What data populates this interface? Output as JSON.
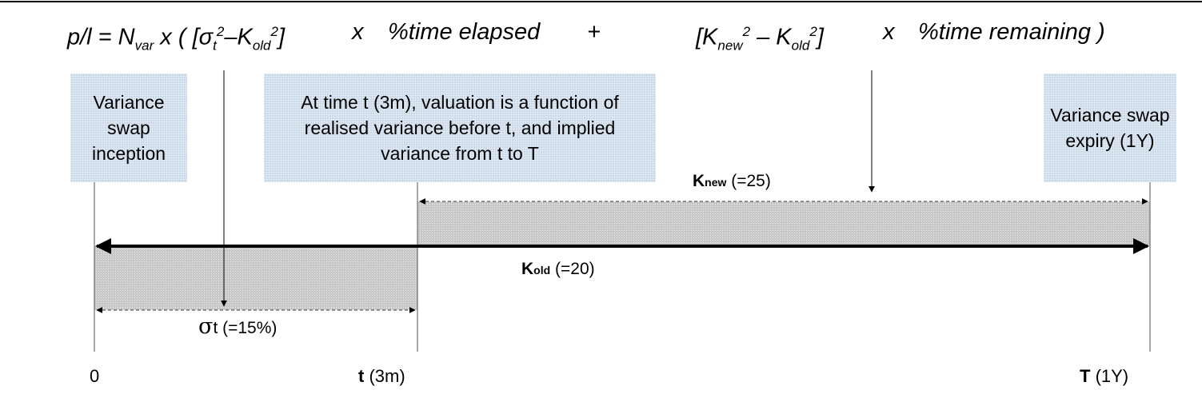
{
  "formula": {
    "lhs": "p/l = N",
    "lhs_sub": "var",
    "open": " x ( [σ",
    "sigma_sub": "t",
    "sigma_sup": "2",
    "minus1": "–K",
    "kold_sub1": "old",
    "kold_sup1": "2",
    "close1": "]",
    "times1": "x",
    "elapsed": "%time elapsed",
    "plus": "+",
    "knew_open": "[K",
    "knew_sub": "new",
    "knew_sup": "2",
    "minus2": " – K",
    "kold_sub2": "old",
    "kold_sup2": "2",
    "close2": "]",
    "times2": "x",
    "remaining": "%time remaining )"
  },
  "boxes": {
    "inception": "Variance swap inception",
    "valuation": "At time t (3m), valuation is a function of realised variance before t, and implied variance from t to T",
    "expiry": "Variance swap expiry (1Y)"
  },
  "labels": {
    "knew_K": "K",
    "knew_sub": "new",
    "knew_val": " (=25)",
    "kold_K": "K",
    "kold_sub": "old",
    "kold_val": " (=20)",
    "sigma_sym": "σ",
    "sigma_sub": "t",
    "sigma_val": " (=15%)"
  },
  "axis": {
    "zero": "0",
    "t_bold": "t",
    "t_rest": " (3m)",
    "T_bold": "T",
    "T_rest": " (1Y)"
  }
}
